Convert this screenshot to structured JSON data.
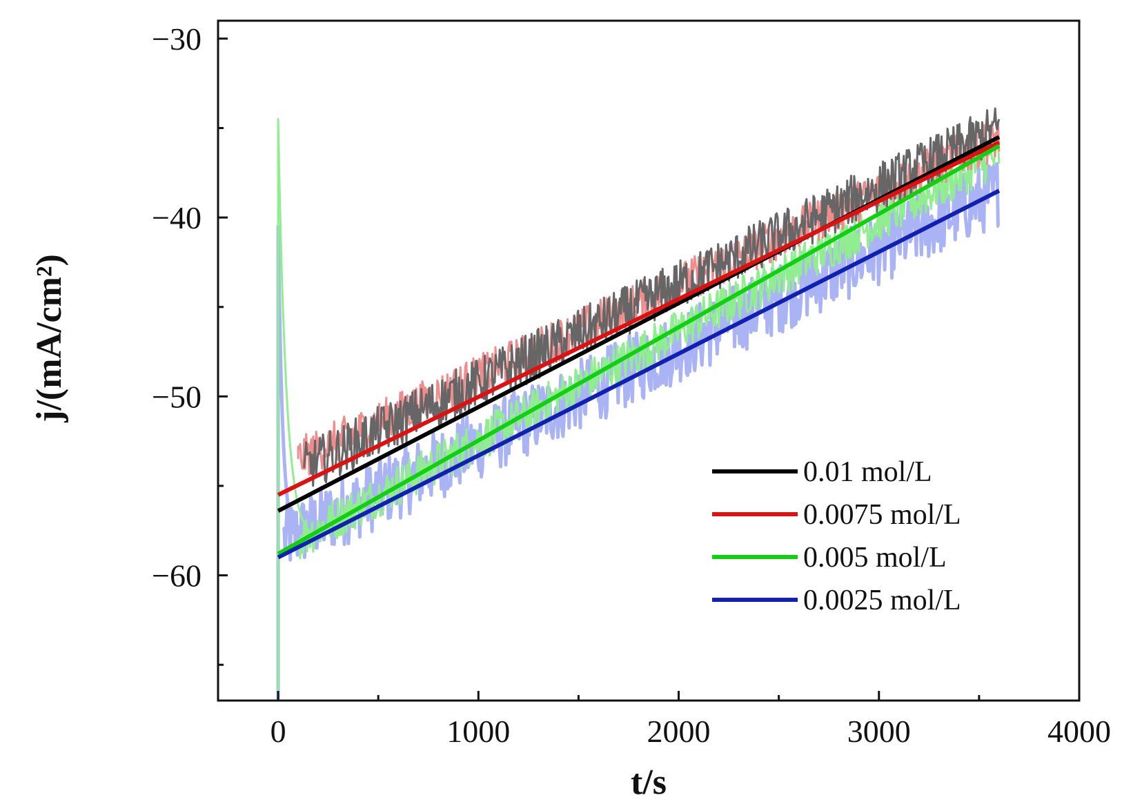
{
  "chart_data": {
    "type": "line",
    "title": "",
    "xlabel": "t/s",
    "ylabel": "j/(mA/cm²)",
    "xlim": [
      -300,
      4000
    ],
    "ylim": [
      -67,
      -29
    ],
    "x_ticks": [
      0,
      1000,
      2000,
      3000,
      4000
    ],
    "y_ticks": [
      -60,
      -50,
      -40,
      -30
    ],
    "x_tick_labels": [
      "0",
      "1000",
      "2000",
      "3000",
      "4000"
    ],
    "y_tick_labels": [
      "−60",
      "−50",
      "−40",
      "−30"
    ],
    "legend_position": "bottom-right",
    "series": [
      {
        "name": "0.01 mol/L",
        "label": "0.01 mol/L",
        "color": "#000000",
        "noise_color": "#666666",
        "fit": {
          "x": [
            0,
            3600
          ],
          "y": [
            -56.4,
            -35.5
          ]
        },
        "noisy_band": {
          "x_start": 130,
          "x_end": 3600,
          "y_start": -54.0,
          "y_end": -35.0,
          "amplitude": 1.4
        }
      },
      {
        "name": "0.0075 mol/L",
        "label": "0.0075 mol/L",
        "color": "#e01010",
        "noise_color": "#f08c8c",
        "fit": {
          "x": [
            0,
            3600
          ],
          "y": [
            -55.5,
            -35.8
          ]
        },
        "noisy_band": {
          "x_start": 100,
          "x_end": 3600,
          "y_start": -53.5,
          "y_end": -35.5,
          "amplitude": 1.2
        }
      },
      {
        "name": "0.005 mol/L",
        "label": "0.005 mol/L",
        "color": "#10d010",
        "noise_color": "#90ee90",
        "fit": {
          "x": [
            0,
            3600
          ],
          "y": [
            -58.8,
            -36.0
          ]
        },
        "spike": {
          "x": 0,
          "y": -34.5
        },
        "noisy_band": {
          "x_start": 100,
          "x_end": 3600,
          "y_start": -58.0,
          "y_end": -36.5,
          "amplitude": 1.2
        }
      },
      {
        "name": "0.0025 mol/L",
        "label": "0.0025 mol/L",
        "color": "#1020b0",
        "noise_color": "#aab4f4",
        "fit": {
          "x": [
            0,
            3600
          ],
          "y": [
            -59.0,
            -38.5
          ]
        },
        "spike": {
          "x": 0,
          "y": -40.5
        },
        "noisy_band": {
          "x_start": 30,
          "x_end": 3600,
          "y_start": -58.0,
          "y_end": -38.5,
          "amplitude": 2.0
        }
      }
    ]
  }
}
